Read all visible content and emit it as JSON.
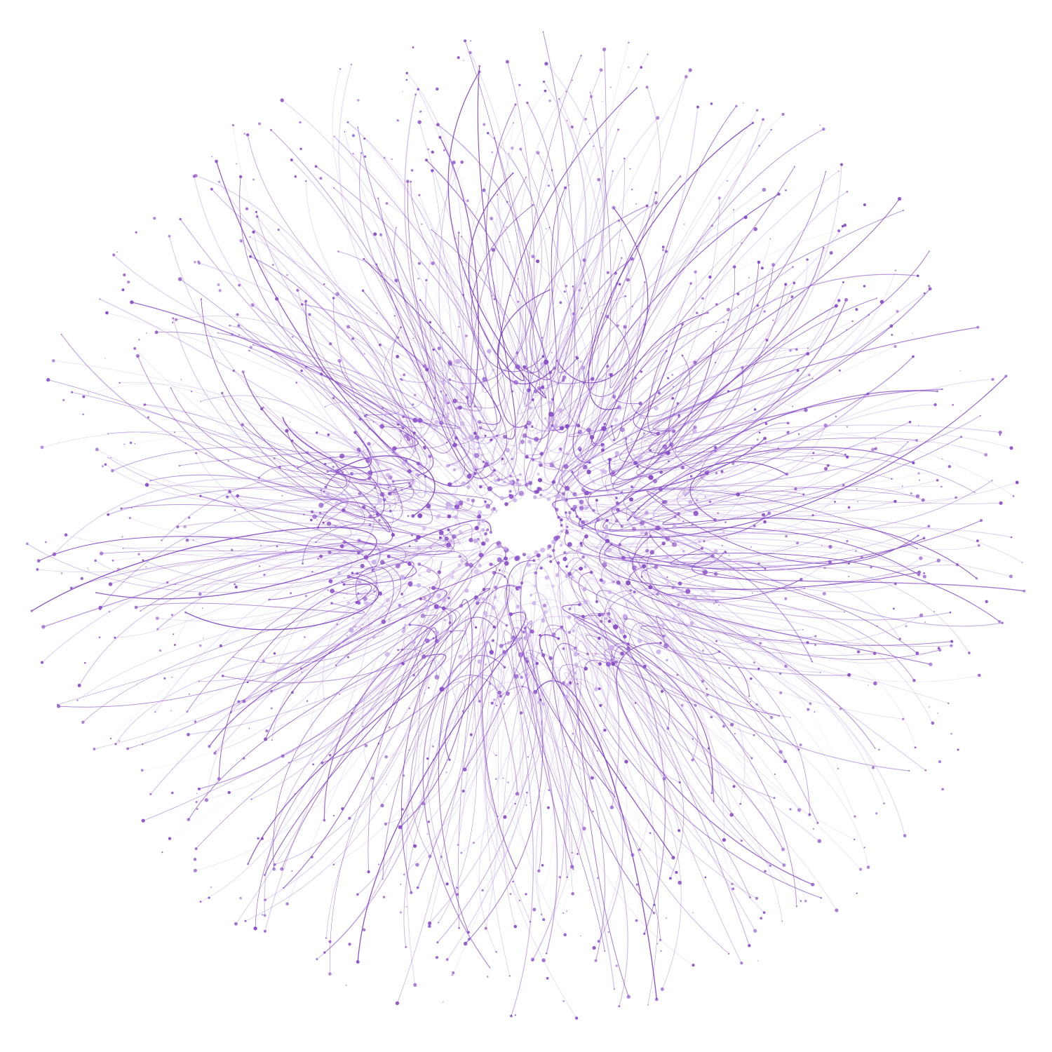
{
  "artwork": {
    "background": "#ffffff",
    "strand_color": "#7f45c0",
    "light_color": "#c9aee8",
    "dot_color": "#8a50c8"
  }
}
